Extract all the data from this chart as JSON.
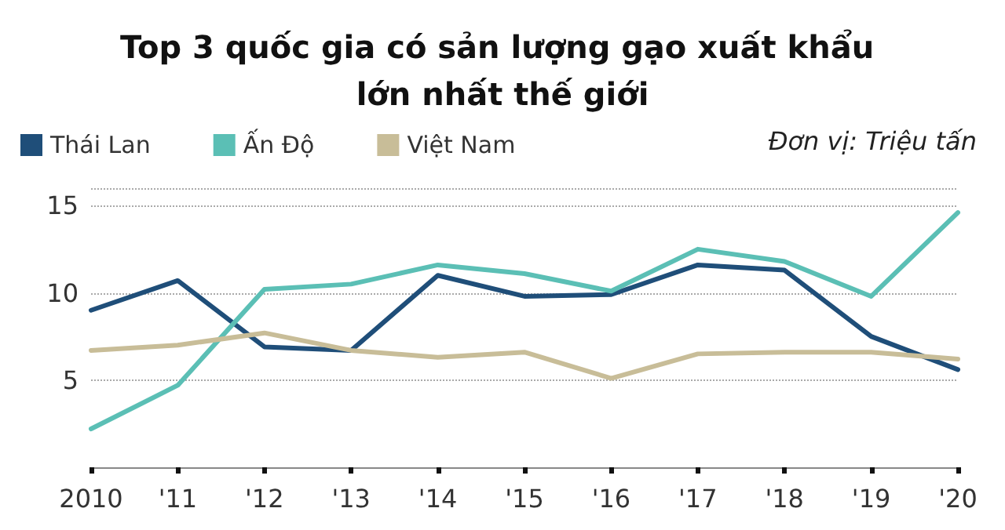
{
  "chart_data": {
    "type": "line",
    "title": "Top 3 quốc gia có sản lượng gạo xuất khẩu lớn nhất thế giới",
    "annotations": [
      "Đơn vị: Triệu tấn"
    ],
    "categories": [
      "2010",
      "'11",
      "'12",
      "'13",
      "'14",
      "'15",
      "'16",
      "'17",
      "'18",
      "'19",
      "'20"
    ],
    "series": [
      {
        "name": "Thái Lan",
        "color": "#1f4e79",
        "values": [
          9.0,
          10.7,
          6.9,
          6.7,
          11.0,
          9.8,
          9.9,
          11.6,
          11.3,
          7.5,
          5.6
        ]
      },
      {
        "name": "Ấn Độ",
        "color": "#5bbfb5",
        "values": [
          2.2,
          4.7,
          10.2,
          10.5,
          11.6,
          11.1,
          10.1,
          12.5,
          11.8,
          9.8,
          14.6
        ]
      },
      {
        "name": "Việt Nam",
        "color": "#c8bd98",
        "values": [
          6.7,
          7.0,
          7.7,
          6.7,
          6.3,
          6.6,
          5.1,
          6.5,
          6.6,
          6.6,
          6.2
        ]
      }
    ],
    "ylim": [
      0,
      16
    ],
    "yticks": [
      5,
      10,
      15
    ],
    "grid": "y",
    "legend": "top left",
    "marker": "none",
    "line_style": "solid"
  }
}
